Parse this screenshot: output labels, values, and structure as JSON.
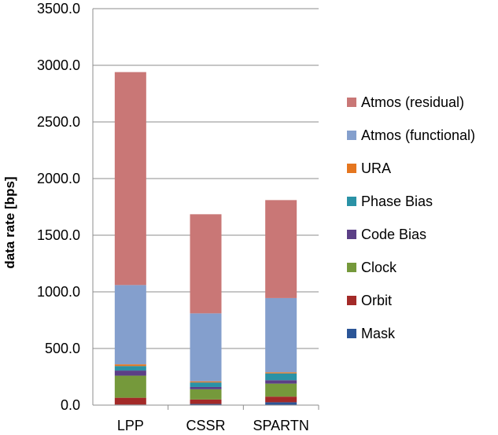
{
  "chart_data": {
    "type": "bar",
    "stacked": true,
    "title": "",
    "xlabel": "",
    "ylabel": "data rate [bps]",
    "ylim": [
      0,
      3500
    ],
    "yticks": [
      "0.0",
      "500.0",
      "1000.0",
      "1500.0",
      "2000.0",
      "2500.0",
      "3000.0",
      "3500.0"
    ],
    "ytick_values": [
      0,
      500,
      1000,
      1500,
      2000,
      2500,
      3000,
      3500
    ],
    "categories": [
      "LPP",
      "CSSR",
      "SPARTN"
    ],
    "grid": "horizontal",
    "legend_position": "right",
    "series": [
      {
        "name": "Mask",
        "color": "#2b5597",
        "values": [
          5,
          10,
          25
        ]
      },
      {
        "name": "Orbit",
        "color": "#a32a28",
        "values": [
          60,
          40,
          50
        ]
      },
      {
        "name": "Clock",
        "color": "#75993b",
        "values": [
          195,
          90,
          115
        ]
      },
      {
        "name": "Code Bias",
        "color": "#5b3f86",
        "values": [
          45,
          20,
          30
        ]
      },
      {
        "name": "Phase Bias",
        "color": "#2a92a6",
        "values": [
          40,
          40,
          60
        ]
      },
      {
        "name": "URA",
        "color": "#e5761f",
        "values": [
          15,
          10,
          10
        ]
      },
      {
        "name": "Atmos (functional)",
        "color": "#849fcd",
        "values": [
          700,
          600,
          655
        ]
      },
      {
        "name": "Atmos (residual)",
        "color": "#c97776",
        "values": [
          1880,
          875,
          865
        ]
      }
    ]
  }
}
